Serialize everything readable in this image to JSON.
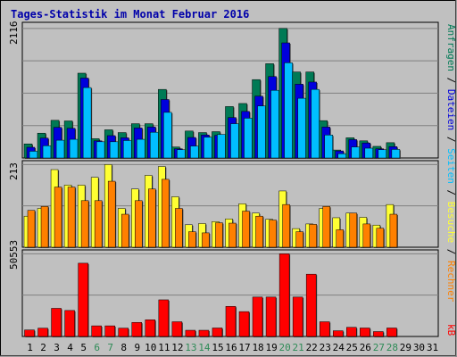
{
  "title": "Tages-Statistik im Monat Februar 2016",
  "colors": {
    "background": "#c0c0c0",
    "title": "#0000aa",
    "anfragen": "#007a55",
    "dateien": "#0000dd",
    "seiten": "#00bfff",
    "besuche": "#ffff33",
    "rechner": "#ff8000",
    "kb": "#ff0000",
    "weekend_label": "#2e8b57",
    "weekday_label": "#000000",
    "grid": "#7f7f7f"
  },
  "chart_data": {
    "type": "bar",
    "title": "Tages-Statistik im Monat Februar 2016",
    "x": {
      "labels": [
        "1",
        "2",
        "3",
        "4",
        "5",
        "6",
        "7",
        "8",
        "9",
        "10",
        "11",
        "12",
        "13",
        "14",
        "15",
        "16",
        "17",
        "18",
        "19",
        "20",
        "21",
        "22",
        "23",
        "24",
        "25",
        "26",
        "27",
        "28",
        "29",
        "30",
        "31"
      ],
      "weekend_days": [
        6,
        7,
        13,
        14,
        20,
        21,
        27,
        28
      ]
    },
    "panels": [
      {
        "id": "top",
        "ymax_label": "2116",
        "ymax": 2116,
        "right_labels": [
          "Anfragen",
          "Dateien",
          "Seiten"
        ],
        "series": [
          {
            "name": "Anfragen",
            "color": "#007a55",
            "values": [
              230,
              405,
              615,
              605,
              1385,
              315,
              460,
              415,
              560,
              560,
              1120,
              180,
              440,
              415,
              430,
              840,
              890,
              1280,
              1540,
              2116,
              1405,
              1405,
              610,
              130,
              330,
              280,
              190,
              250,
              null,
              null,
              null
            ]
          },
          {
            "name": "Dateien",
            "color": "#0000dd",
            "values": [
              175,
              325,
              500,
              485,
              1305,
              280,
              365,
              330,
              490,
              505,
              955,
              150,
              335,
              375,
              370,
              660,
              760,
              1010,
              1330,
              1880,
              1205,
              1240,
              505,
              115,
              300,
              245,
              150,
              185,
              null,
              null,
              null
            ]
          },
          {
            "name": "Seiten",
            "color": "#00bfff",
            "values": [
              110,
              200,
              290,
              305,
              1150,
              265,
              265,
              285,
              305,
              420,
              745,
              135,
              195,
              340,
              385,
              560,
              650,
              850,
              1105,
              1555,
              975,
              1120,
              375,
              70,
              180,
              160,
              135,
              140,
              null,
              null,
              null
            ]
          }
        ]
      },
      {
        "id": "middle",
        "ymax_label": "213",
        "ymax": 213,
        "right_labels": [
          "Besuche",
          "Rechner"
        ],
        "series": [
          {
            "name": "Besuche",
            "color": "#ffff33",
            "values": [
              80,
              100,
              200,
              160,
              160,
              180,
              213,
              100,
              150,
              185,
              208,
              130,
              58,
              61,
              66,
              73,
              112,
              88,
              72,
              145,
              48,
              60,
              100,
              76,
              88,
              77,
              57,
              110,
              null,
              null,
              null
            ]
          },
          {
            "name": "Rechner",
            "color": "#ff8000",
            "values": [
              95,
              105,
              155,
              155,
              120,
              120,
              170,
              85,
              120,
              150,
              175,
              100,
              40,
              37,
              63,
              62,
              93,
              80,
              70,
              110,
              40,
              59,
              105,
              45,
              88,
              60,
              49,
              85,
              null,
              null,
              null
            ]
          }
        ]
      },
      {
        "id": "bottom",
        "ymax_label": "50553",
        "ymax": 50553,
        "right_labels": [
          "kB"
        ],
        "series": [
          {
            "name": "kB",
            "color": "#ff0000",
            "values": [
              4000,
              5100,
              17200,
              15900,
              44800,
              6500,
              6500,
              5100,
              8600,
              10200,
              22400,
              9000,
              3800,
              3800,
              5200,
              18400,
              15200,
              24100,
              24100,
              50553,
              24100,
              38100,
              9000,
              3500,
              5600,
              5200,
              3000,
              5200,
              null,
              null,
              null
            ]
          }
        ]
      }
    ]
  }
}
